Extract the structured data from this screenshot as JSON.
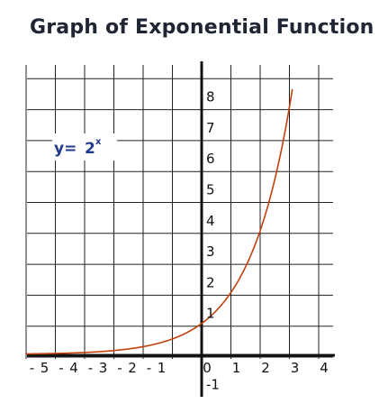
{
  "title": "Graph of Exponential Function",
  "chart_data": {
    "type": "line",
    "function_label": {
      "lhs": "y=",
      "base": "2",
      "exponent": "x"
    },
    "x_tick_labels": [
      "5",
      "4",
      "3",
      "2",
      "1",
      "0",
      "1",
      "2",
      "3",
      "4"
    ],
    "x_tick_values": [
      -5,
      -4,
      -3,
      -2,
      -1,
      0,
      1,
      2,
      3,
      4
    ],
    "x_negative_marks": [
      -5,
      -4,
      -3,
      -2,
      -1
    ],
    "y_tick_labels": [
      "8",
      "7",
      "6",
      "5",
      "4",
      "3",
      "2",
      "1",
      "-1"
    ],
    "y_tick_values": [
      8,
      7,
      6,
      5,
      4,
      3,
      2,
      1,
      -1
    ],
    "xlim": [
      -6,
      4.6
    ],
    "ylim": [
      -1,
      8.5
    ],
    "grid": true,
    "series": [
      {
        "function": "2^x",
        "x": [
          -6,
          -5,
          -4,
          -3,
          -2,
          -1,
          0,
          1,
          2,
          3
        ],
        "y": [
          0.0156,
          0.03125,
          0.0625,
          0.125,
          0.25,
          0.5,
          1,
          2,
          4,
          8
        ]
      }
    ],
    "colors": {
      "curve": "#c2410c",
      "axis": "#111111",
      "grid": "#222222",
      "equation": "#1f3a8a"
    }
  }
}
